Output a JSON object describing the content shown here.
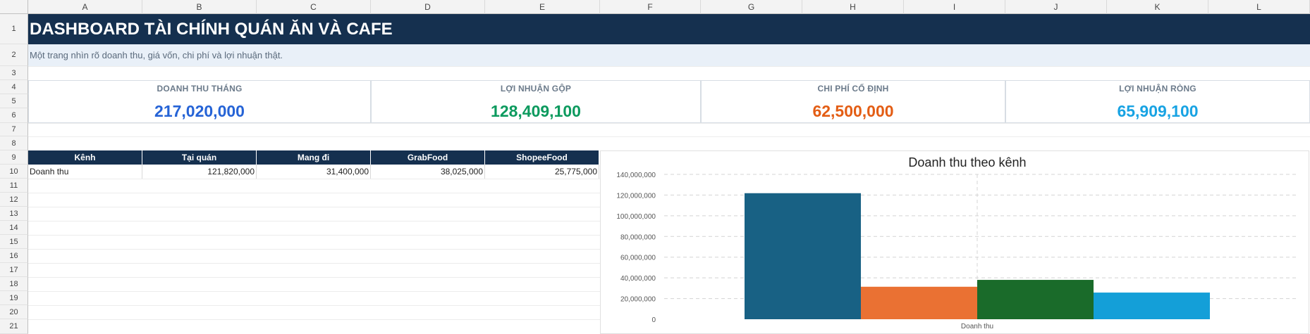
{
  "columns": [
    "A",
    "B",
    "C",
    "D",
    "E",
    "F",
    "G",
    "H",
    "I",
    "J",
    "K",
    "L"
  ],
  "rows": [
    "1",
    "2",
    "3",
    "4",
    "5",
    "6",
    "7",
    "8",
    "9",
    "10",
    "11",
    "12",
    "13",
    "14",
    "15",
    "16",
    "17",
    "18",
    "19",
    "20",
    "21"
  ],
  "title": "DASHBOARD TÀI CHÍNH QUÁN ĂN VÀ CAFE",
  "subtitle": "Một trang nhìn rõ doanh thu, giá vốn, chi phí và lợi nhuận thật.",
  "kpis": [
    {
      "label": "DOANH THU THÁNG",
      "value": "217,020,000",
      "color": "#2563d6"
    },
    {
      "label": "LỢI NHUẬN GỘP",
      "value": "128,409,100",
      "color": "#0c9a5e"
    },
    {
      "label": "CHI PHÍ CỐ ĐỊNH",
      "value": "62,500,000",
      "color": "#e35d14"
    },
    {
      "label": "LỢI NHUẬN RÒNG",
      "value": "65,909,100",
      "color": "#18a3e3"
    }
  ],
  "table": {
    "headers": [
      "Kênh",
      "Tại quán",
      "Mang đi",
      "GrabFood",
      "ShopeeFood"
    ],
    "row": [
      "Doanh thu",
      "121,820,000",
      "31,400,000",
      "38,025,000",
      "25,775,000"
    ]
  },
  "chart_data": {
    "type": "bar",
    "title": "Doanh thu theo kênh",
    "categories": [
      "Doanh thu"
    ],
    "series": [
      {
        "name": "Tại quán",
        "values": [
          121820000
        ],
        "color": "#186184"
      },
      {
        "name": "Mang đi",
        "values": [
          31400000
        ],
        "color": "#ea7133"
      },
      {
        "name": "GrabFood",
        "values": [
          38025000
        ],
        "color": "#1a6b2a"
      },
      {
        "name": "ShopeeFood",
        "values": [
          25775000
        ],
        "color": "#149fd8"
      }
    ],
    "ylim": [
      0,
      140000000
    ],
    "yticks": [
      "0",
      "20,000,000",
      "40,000,000",
      "60,000,000",
      "80,000,000",
      "100,000,000",
      "120,000,000",
      "140,000,000"
    ],
    "grid": true,
    "legend": "none"
  }
}
